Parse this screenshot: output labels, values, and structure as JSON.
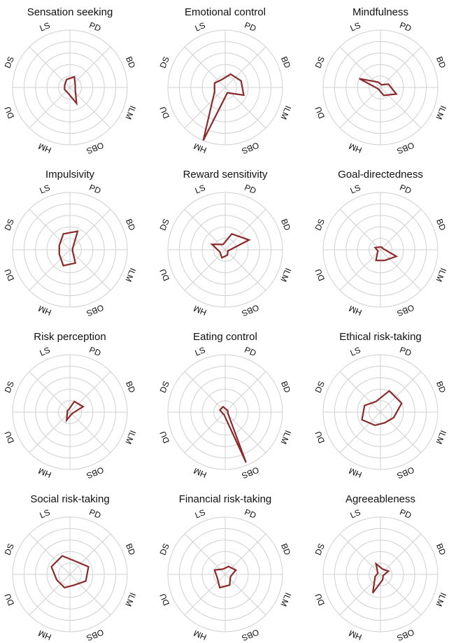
{
  "chart_data": [
    {
      "type": "radar",
      "title": "Sensation seeking",
      "categories": [
        "PD",
        "BD",
        "ILM",
        "OBS",
        "HM",
        "DU",
        "DS",
        "LS"
      ],
      "values": [
        0.2,
        0.1,
        0.1,
        0.3,
        0.1,
        0.1,
        0.1,
        0.15
      ],
      "color": "#8b2a2a",
      "rlim": [
        0,
        1
      ],
      "rticks": [
        0.2,
        0.4,
        0.6,
        0.8,
        1
      ]
    },
    {
      "type": "radar",
      "title": "Emotional control",
      "categories": [
        "PD",
        "BD",
        "ILM",
        "OBS",
        "HM",
        "DU",
        "DS",
        "LS"
      ],
      "values": [
        0.25,
        0.3,
        0.35,
        0.1,
        1,
        0.2,
        0.2,
        0.15
      ],
      "color": "#8b2a2a",
      "rlim": [
        0,
        1
      ],
      "rticks": [
        0.2,
        0.4,
        0.6,
        0.8,
        1
      ]
    },
    {
      "type": "radar",
      "title": "Mindfulness",
      "categories": [
        "PD",
        "BD",
        "ILM",
        "OBS",
        "HM",
        "DU",
        "DS",
        "LS"
      ],
      "values": [
        0.05,
        0.15,
        0.3,
        0.15,
        0.05,
        0.05,
        0.4,
        0.1
      ],
      "color": "#8b2a2a",
      "rlim": [
        0,
        1
      ],
      "rticks": [
        0.2,
        0.4,
        0.6,
        0.8,
        1
      ]
    },
    {
      "type": "radar",
      "title": "Impulsivity",
      "categories": [
        "PD",
        "BD",
        "ILM",
        "OBS",
        "HM",
        "DU",
        "DS",
        "LS"
      ],
      "values": [
        0.35,
        0.05,
        0.05,
        0.25,
        0.3,
        0.2,
        0.2,
        0.3
      ],
      "color": "#8b2a2a",
      "rlim": [
        0,
        1
      ],
      "rticks": [
        0.2,
        0.4,
        0.6,
        0.8,
        1
      ]
    },
    {
      "type": "radar",
      "title": "Reward sensitivity",
      "categories": [
        "PD",
        "BD",
        "ILM",
        "OBS",
        "HM",
        "DU",
        "DS",
        "LS"
      ],
      "values": [
        0.3,
        0.45,
        0.05,
        0.1,
        0.15,
        0.1,
        0.25,
        0.1
      ],
      "color": "#8b2a2a",
      "rlim": [
        0,
        1
      ],
      "rticks": [
        0.2,
        0.4,
        0.6,
        0.8,
        1
      ]
    },
    {
      "type": "radar",
      "title": "Goal-directedness",
      "categories": [
        "PD",
        "BD",
        "ILM",
        "OBS",
        "HM",
        "DU",
        "DS",
        "LS"
      ],
      "values": [
        0.05,
        0.05,
        0.3,
        0.2,
        0.2,
        0.05,
        0.1,
        0.05
      ],
      "color": "#8b2a2a",
      "rlim": [
        0,
        1
      ],
      "rticks": [
        0.2,
        0.4,
        0.6,
        0.8,
        1
      ]
    },
    {
      "type": "radar",
      "title": "Risk perception",
      "categories": [
        "PD",
        "BD",
        "ILM",
        "OBS",
        "HM",
        "DU",
        "DS",
        "LS"
      ],
      "values": [
        0.2,
        0.25,
        0.05,
        0.05,
        0.15,
        0.05,
        0.05,
        0.05
      ],
      "color": "#8b2a2a",
      "rlim": [
        0,
        1
      ],
      "rticks": [
        0.2,
        0.4,
        0.6,
        0.8,
        1
      ]
    },
    {
      "type": "radar",
      "title": "Eating control",
      "categories": [
        "PD",
        "BD",
        "ILM",
        "OBS",
        "HM",
        "DU",
        "DS",
        "LS"
      ],
      "values": [
        0.05,
        0.05,
        0.05,
        0.95,
        0.05,
        0.05,
        0.1,
        0.1
      ],
      "color": "#8b2a2a",
      "rlim": [
        0,
        1
      ],
      "rticks": [
        0.2,
        0.4,
        0.6,
        0.8,
        1
      ]
    },
    {
      "type": "radar",
      "title": "Ethical risk-taking",
      "categories": [
        "PD",
        "BD",
        "ILM",
        "OBS",
        "HM",
        "DU",
        "DS",
        "LS"
      ],
      "values": [
        0.4,
        0.4,
        0.25,
        0.2,
        0.25,
        0.35,
        0.3,
        0.2
      ],
      "color": "#8b2a2a",
      "rlim": [
        0,
        1
      ],
      "rticks": [
        0.2,
        0.4,
        0.6,
        0.8,
        1
      ]
    },
    {
      "type": "radar",
      "title": "Social risk-taking",
      "categories": [
        "PD",
        "BD",
        "ILM",
        "OBS",
        "HM",
        "DU",
        "DS",
        "LS"
      ],
      "values": [
        0.25,
        0.35,
        0.3,
        0.2,
        0.25,
        0.25,
        0.35,
        0.35
      ],
      "color": "#8b2a2a",
      "rlim": [
        0,
        1
      ],
      "rticks": [
        0.2,
        0.4,
        0.6,
        0.8,
        1
      ]
    },
    {
      "type": "radar",
      "title": "Financial risk-taking",
      "categories": [
        "PD",
        "BD",
        "ILM",
        "OBS",
        "HM",
        "DU",
        "DS",
        "LS"
      ],
      "values": [
        0.15,
        0.2,
        0.1,
        0.2,
        0.25,
        0.15,
        0.2,
        0.1
      ],
      "color": "#8b2a2a",
      "rlim": [
        0,
        1
      ],
      "rticks": [
        0.2,
        0.4,
        0.6,
        0.8,
        1
      ]
    },
    {
      "type": "radar",
      "title": "Agreeableness",
      "categories": [
        "PD",
        "BD",
        "ILM",
        "OBS",
        "HM",
        "DU",
        "DS",
        "LS"
      ],
      "values": [
        0.1,
        0.15,
        0.05,
        0.1,
        0.35,
        0.1,
        0.05,
        0.2
      ],
      "color": "#8b2a2a",
      "rlim": [
        0,
        1
      ],
      "rticks": [
        0.2,
        0.4,
        0.6,
        0.8,
        1
      ]
    }
  ]
}
